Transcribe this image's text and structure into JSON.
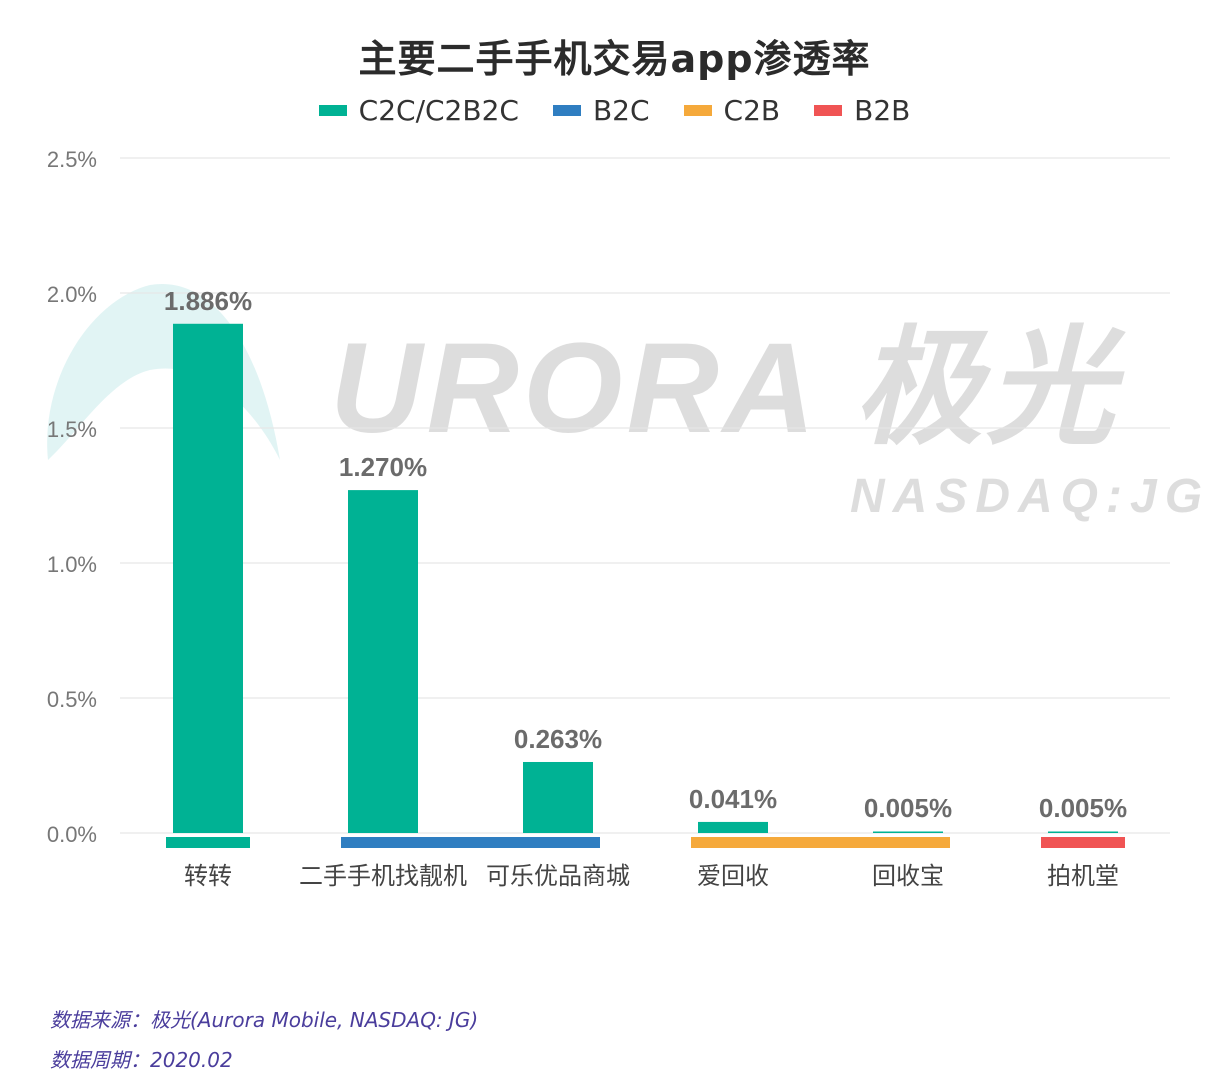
{
  "chart_data": {
    "type": "bar",
    "title": "主要二手手机交易app渗透率",
    "categories": [
      "转转",
      "二手手机找靓机",
      "可乐优品商城",
      "爱回收",
      "回收宝",
      "拍机堂"
    ],
    "values": [
      1.886,
      1.27,
      0.263,
      0.041,
      0.005,
      0.005
    ],
    "value_labels": [
      "1.886%",
      "1.270%",
      "0.263%",
      "0.041%",
      "0.005%",
      "0.005%"
    ],
    "category_groups": [
      "C2C/C2B2C",
      "B2C",
      "B2C",
      "C2B",
      "C2B",
      "B2B"
    ],
    "legend": [
      {
        "name": "C2C/C2B2C",
        "color": "#00b294"
      },
      {
        "name": "B2C",
        "color": "#2f7ec1"
      },
      {
        "name": "C2B",
        "color": "#f5a93b"
      },
      {
        "name": "B2B",
        "color": "#f05454"
      }
    ],
    "group_bands": [
      {
        "group": "C2C/C2B2C",
        "from": 0,
        "to": 0
      },
      {
        "group": "B2C",
        "from": 1,
        "to": 2
      },
      {
        "group": "C2B",
        "from": 3,
        "to": 4
      },
      {
        "group": "B2B",
        "from": 5,
        "to": 5
      }
    ],
    "bar_color": "#00b294",
    "ylim": [
      0,
      2.5
    ],
    "yticks": [
      0,
      0.5,
      1.0,
      1.5,
      2.0,
      2.5
    ],
    "ytick_labels": [
      "0.0%",
      "0.5%",
      "1.0%",
      "1.5%",
      "2.0%",
      "2.5%"
    ],
    "xlabel": "",
    "ylabel": "",
    "grid": true
  },
  "watermark": {
    "brand": "URORA 极光",
    "ticker": "NASDAQ:JG"
  },
  "footer": {
    "source": "数据来源：极光(Aurora Mobile, NASDAQ: JG)",
    "period": "数据周期：2020.02"
  }
}
